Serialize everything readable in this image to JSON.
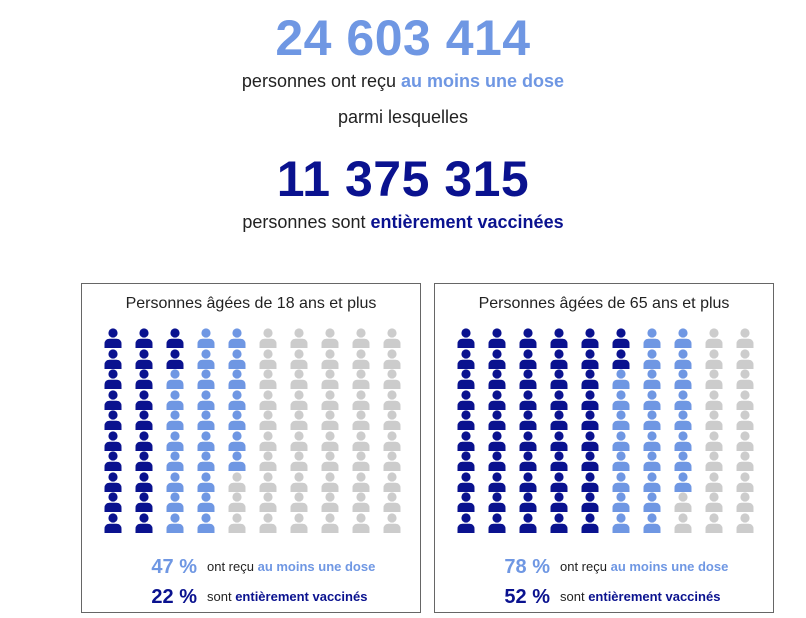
{
  "headline": {
    "first_dose_total": "24 603 414",
    "first_dose_prefix": "personnes ont reçu ",
    "first_dose_highlight": "au moins une dose",
    "among": "parmi lesquelles",
    "full_total": "11 375 315",
    "full_prefix": "personnes sont ",
    "full_highlight": "entièrement vaccinées"
  },
  "colors": {
    "full": "#0a128f",
    "partial": "#6f97e3",
    "none": "#cccccc"
  },
  "icons": {
    "person": "person-icon"
  },
  "panels": [
    {
      "title": "Personnes âgées de 18 ans et plus",
      "at_least_one_dose_pct": 47,
      "fully_vaccinated_pct": 22,
      "at_least_one_dose_text": "47 %",
      "fully_vaccinated_text": "22 %",
      "dose_prefix": "ont reçu ",
      "dose_highlight": "au moins une dose",
      "full_prefix": "sont ",
      "full_highlight": "entièrement vaccinés"
    },
    {
      "title": "Personnes âgées de 65 ans et plus",
      "at_least_one_dose_pct": 78,
      "fully_vaccinated_pct": 52,
      "at_least_one_dose_text": "78 %",
      "fully_vaccinated_text": "52 %",
      "dose_prefix": "ont reçu ",
      "dose_highlight": "au moins une dose",
      "full_prefix": "sont ",
      "full_highlight": "entièrement vaccinés"
    }
  ]
}
